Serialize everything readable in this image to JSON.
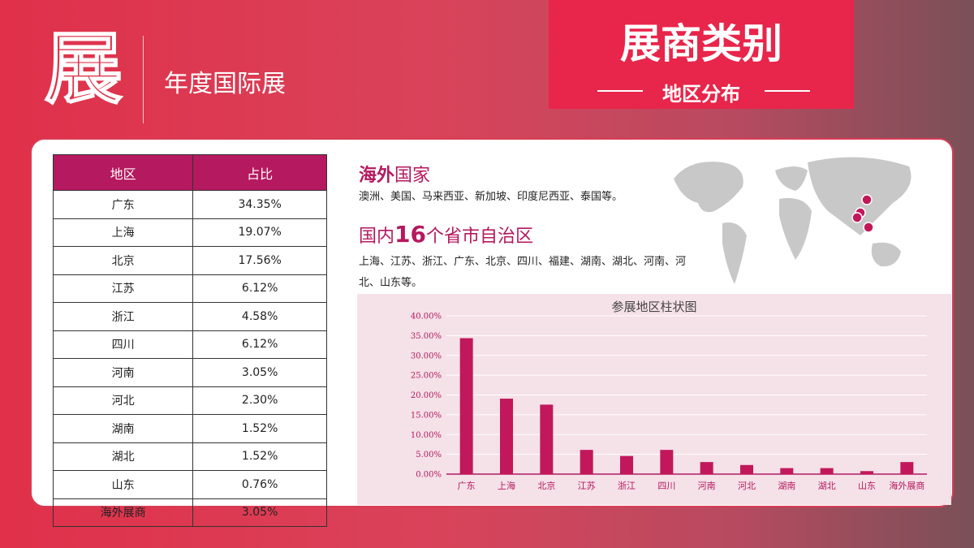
{
  "header": {
    "logo_char": "展",
    "subtitle": "年度国际展",
    "title": "展商类别",
    "tag": "地区分布"
  },
  "table": {
    "columns": [
      "地区",
      "占比"
    ],
    "rows": [
      [
        "广东",
        "34.35%"
      ],
      [
        "上海",
        "19.07%"
      ],
      [
        "北京",
        "17.56%"
      ],
      [
        "江苏",
        "6.12%"
      ],
      [
        "浙江",
        "4.58%"
      ],
      [
        "四川",
        "6.12%"
      ],
      [
        "河南",
        "3.05%"
      ],
      [
        "河北",
        "2.30%"
      ],
      [
        "湖南",
        "1.52%"
      ],
      [
        "湖北",
        "1.52%"
      ],
      [
        "山东",
        "0.76%"
      ],
      [
        "海外展商",
        "3.05%"
      ]
    ]
  },
  "overseas": {
    "title_bold": "海外",
    "title_rest": "国家",
    "text": "澳洲、美国、马来西亚、新加坡、印度尼西亚、泰国等。"
  },
  "domestic": {
    "title_start": "国内",
    "title_number": "16",
    "title_end": "个省市自治区",
    "text": "上海、江苏、浙江、广东、北京、四川、福建、湖南、湖北、河南、河北、山东等。"
  },
  "chart_data": {
    "type": "bar",
    "title": "参展地区柱状图",
    "categories": [
      "广东",
      "上海",
      "北京",
      "江苏",
      "浙江",
      "四川",
      "河南",
      "河北",
      "湖南",
      "湖北",
      "山东",
      "海外展商"
    ],
    "values": [
      34.35,
      19.07,
      17.56,
      6.12,
      4.58,
      6.12,
      3.05,
      2.3,
      1.52,
      1.52,
      0.76,
      3.05
    ],
    "color": "#c2185b",
    "ylim": [
      0,
      40
    ],
    "yticks": [
      {
        "value": 0,
        "label": "0.00%"
      },
      {
        "value": 5,
        "label": "5.00%"
      },
      {
        "value": 10,
        "label": "10.00%"
      },
      {
        "value": 15,
        "label": "15.00%"
      },
      {
        "value": 20,
        "label": "20.00%"
      },
      {
        "value": 25,
        "label": "25.00%"
      },
      {
        "value": 30,
        "label": "30.00%"
      },
      {
        "value": 35,
        "label": "35.00%"
      },
      {
        "value": 40,
        "label": "40.00%"
      }
    ],
    "grid": true
  }
}
